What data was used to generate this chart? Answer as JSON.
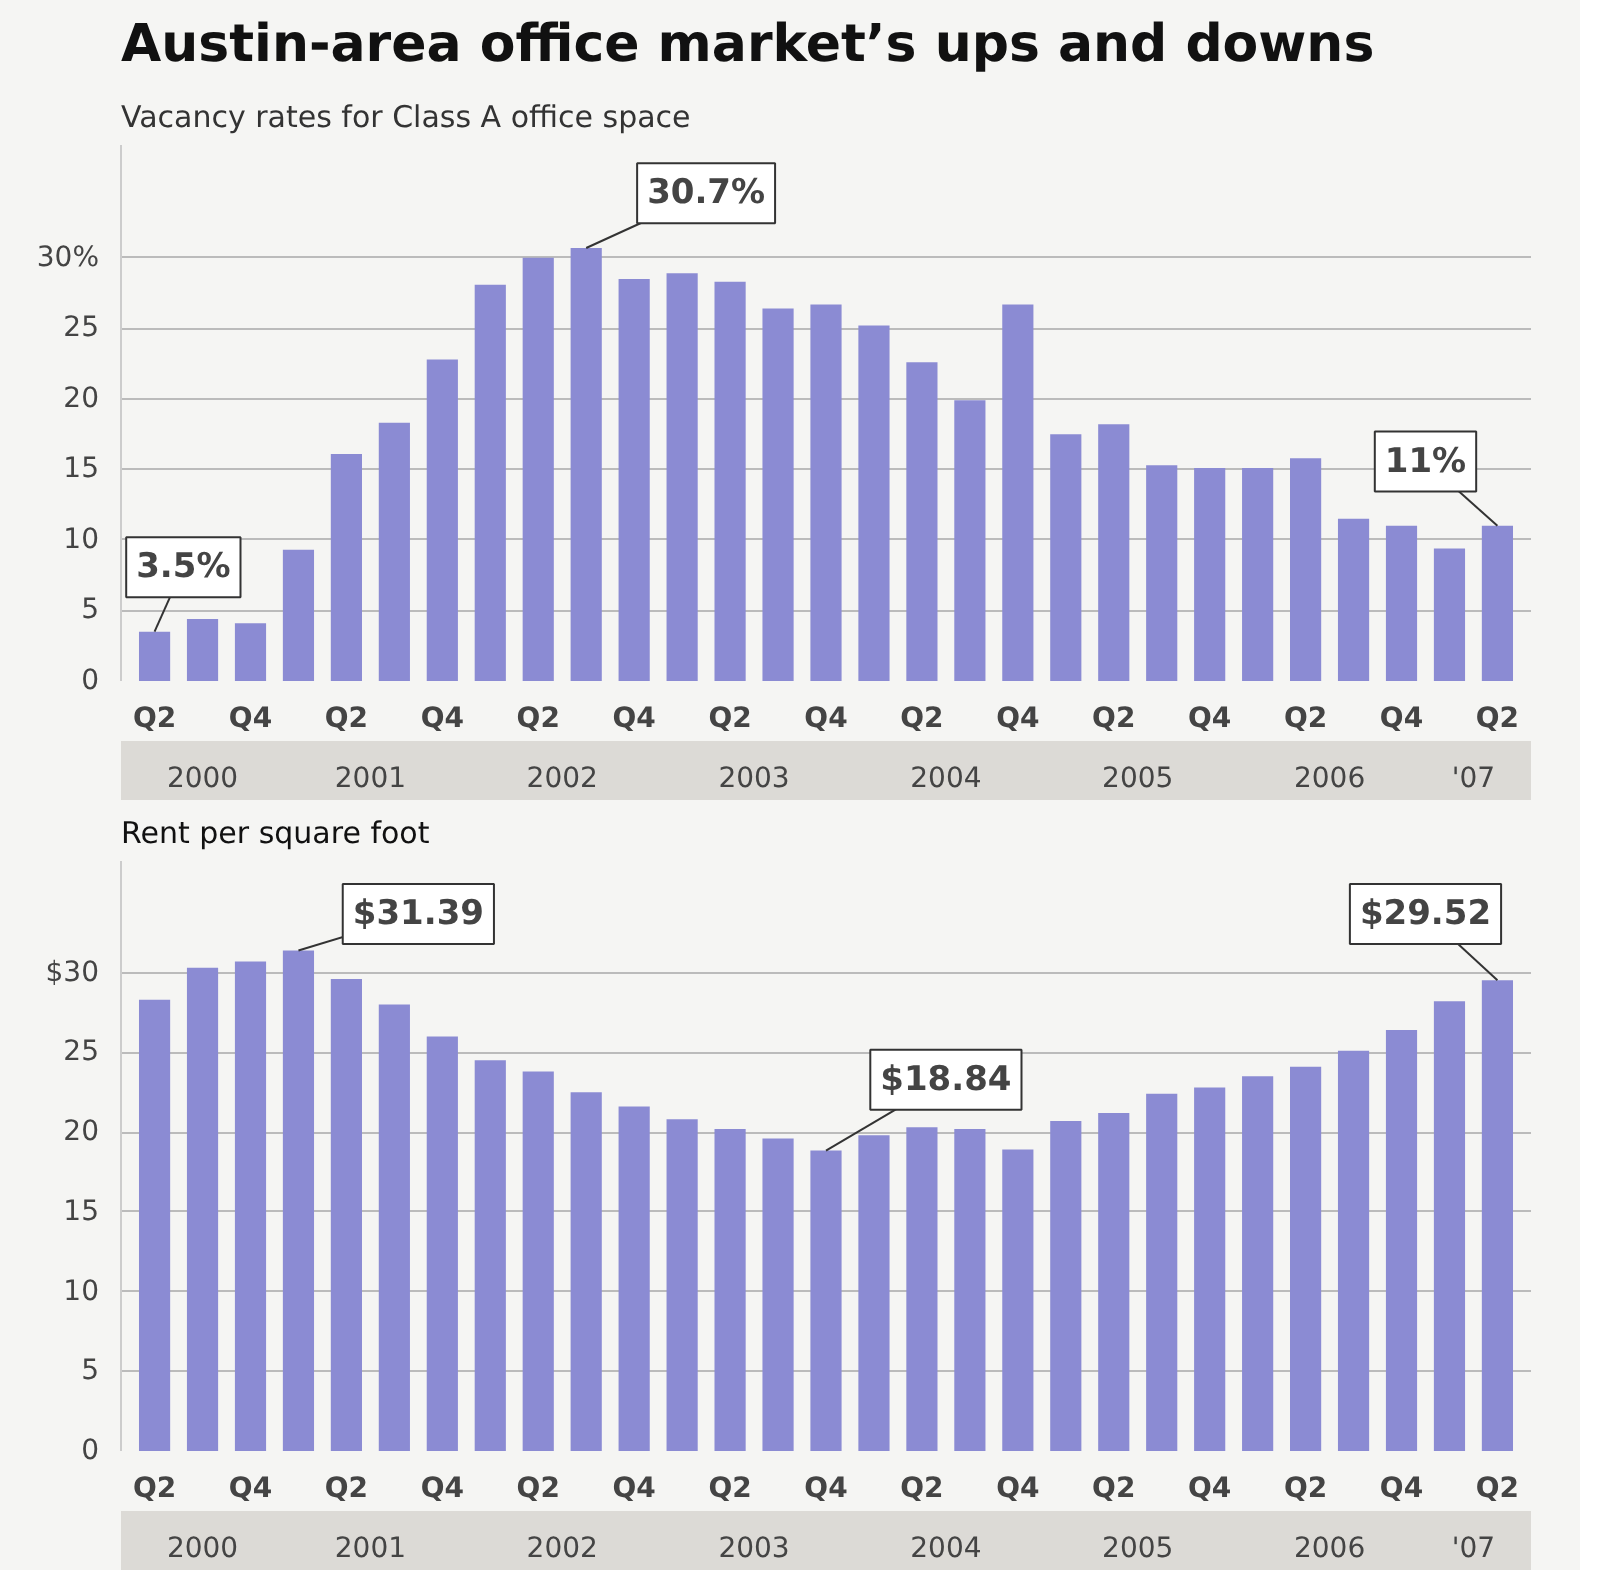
{
  "chart_data": [
    {
      "type": "bar",
      "title": "Austin-area office market’s ups and downs",
      "subtitle": "Vacancy rates for Class A office space",
      "categories": [
        "Q2",
        null,
        "Q4",
        null,
        "Q2",
        null,
        "Q4",
        null,
        "Q2",
        null,
        "Q4",
        null,
        "Q2",
        null,
        "Q4",
        null,
        "Q2",
        null,
        "Q4",
        null,
        "Q2",
        null,
        "Q4",
        null,
        "Q2",
        null,
        "Q4",
        null,
        "Q2"
      ],
      "values": [
        3.5,
        4.4,
        4.1,
        9.3,
        16.1,
        18.3,
        22.8,
        28.1,
        30.0,
        30.7,
        28.5,
        28.9,
        28.3,
        26.4,
        26.7,
        25.2,
        22.6,
        19.9,
        26.7,
        17.5,
        18.2,
        15.3,
        15.1,
        15.1,
        15.8,
        11.5,
        11.0,
        9.4,
        11
      ],
      "value_labels": [
        "3.5%",
        null,
        null,
        null,
        null,
        null,
        null,
        null,
        null,
        "30.7%",
        null,
        null,
        null,
        null,
        null,
        null,
        null,
        null,
        null,
        null,
        null,
        null,
        null,
        null,
        null,
        null,
        null,
        null,
        "11%"
      ],
      "color": "#8b8bd3",
      "ylim": [
        0,
        38
      ],
      "yticks": [
        0,
        5,
        10,
        15,
        20,
        25,
        {
          "value": 30,
          "label": "30%"
        }
      ],
      "grid": "y",
      "annotations": [
        "2000",
        "2001",
        "2002",
        "2003",
        "2004",
        "2005",
        "2006",
        "'07"
      ]
    },
    {
      "type": "bar",
      "title": "Rent per square foot",
      "categories": [
        "Q2",
        null,
        "Q4",
        null,
        "Q2",
        null,
        "Q4",
        null,
        "Q2",
        null,
        "Q4",
        null,
        "Q2",
        null,
        "Q4",
        null,
        "Q2",
        null,
        "Q4",
        null,
        "Q2",
        null,
        "Q4",
        null,
        "Q2",
        null,
        "Q4",
        null,
        "Q2"
      ],
      "values": [
        28.3,
        30.3,
        30.7,
        31.39,
        29.6,
        28.0,
        26.0,
        24.5,
        23.8,
        22.5,
        21.6,
        20.8,
        20.2,
        19.6,
        18.84,
        19.8,
        20.3,
        20.2,
        18.9,
        20.7,
        21.2,
        22.4,
        22.8,
        23.5,
        24.1,
        25.1,
        26.4,
        28.2,
        29.52
      ],
      "value_labels": [
        null,
        null,
        null,
        "$31.39",
        null,
        null,
        null,
        null,
        null,
        null,
        null,
        null,
        null,
        null,
        "$18.84",
        null,
        null,
        null,
        null,
        null,
        null,
        null,
        null,
        null,
        null,
        null,
        null,
        null,
        "$29.52"
      ],
      "color": "#8b8bd3",
      "ylim": [
        0,
        37
      ],
      "yticks": [
        0,
        5,
        10,
        15,
        20,
        25,
        {
          "value": 30,
          "label": "$30"
        }
      ],
      "grid": "y",
      "annotations": [
        "2000",
        "2001",
        "2002",
        "2003",
        "2004",
        "2005",
        "2006",
        "'07"
      ]
    }
  ]
}
